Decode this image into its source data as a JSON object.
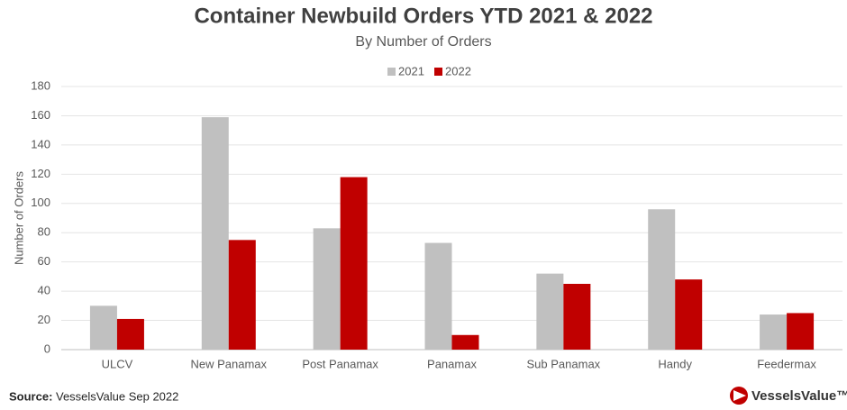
{
  "chart_data": {
    "type": "bar",
    "title": "Container Newbuild Orders YTD 2021 & 2022",
    "subtitle": "By Number of Orders",
    "y_label": "Number of Orders",
    "categories": [
      "ULCV",
      "New Panamax",
      "Post Panamax",
      "Panamax",
      "Sub Panamax",
      "Handy",
      "Feedermax"
    ],
    "series": [
      {
        "name": "2021",
        "color": "#c0c0c0",
        "values": [
          30,
          159,
          83,
          73,
          52,
          96,
          24
        ]
      },
      {
        "name": "2022",
        "color": "#c00000",
        "values": [
          21,
          75,
          118,
          10,
          45,
          48,
          25
        ]
      }
    ],
    "ylim": [
      0,
      180
    ],
    "yticks": [
      0,
      20,
      40,
      60,
      80,
      100,
      120,
      140,
      160,
      180
    ],
    "grid": true,
    "legend": "top",
    "source_label": "Source:",
    "source": "VesselsValue Sep 2022",
    "logo": "VesselsValue™"
  }
}
